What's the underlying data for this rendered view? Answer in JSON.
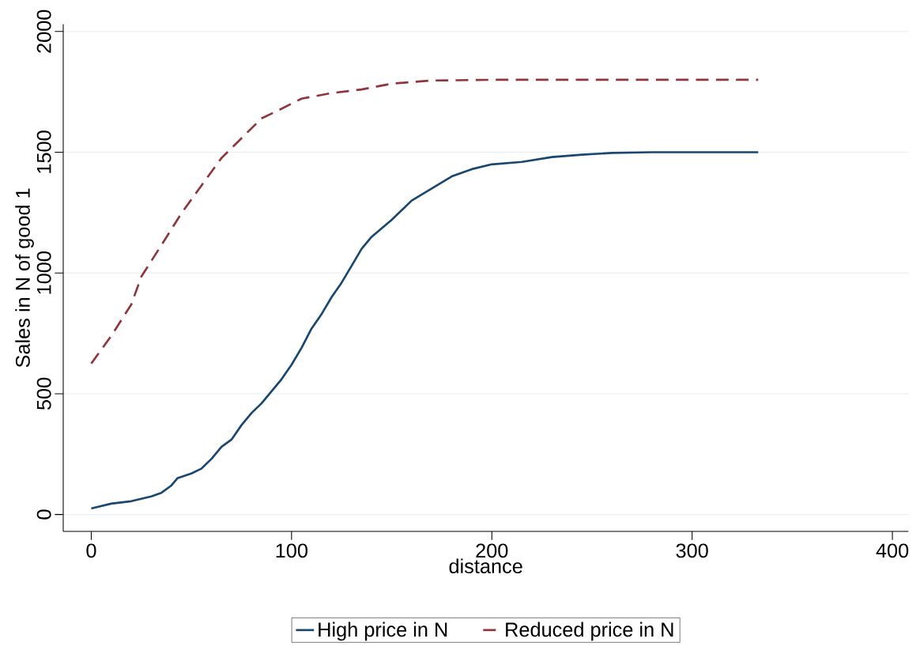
{
  "chart_data": {
    "type": "line",
    "xlabel": "distance",
    "ylabel": "Sales in N of good 1",
    "x": [
      0,
      10,
      20,
      30,
      35,
      40,
      43,
      50,
      55,
      60,
      65,
      70,
      75,
      80,
      85,
      90,
      95,
      100,
      105,
      110,
      115,
      120,
      125,
      130,
      135,
      140,
      150,
      160,
      170,
      180,
      190,
      200,
      215,
      230,
      245,
      260,
      280,
      333
    ],
    "series": [
      {
        "name": "High price in N",
        "color": "#1a476f",
        "line_style": "solid",
        "values": [
          25,
          45,
          55,
          75,
          90,
          120,
          150,
          170,
          190,
          230,
          280,
          310,
          370,
          420,
          460,
          510,
          560,
          620,
          690,
          770,
          830,
          900,
          960,
          1030,
          1100,
          1150,
          1220,
          1300,
          1350,
          1400,
          1430,
          1450,
          1460,
          1480,
          1490,
          1497,
          1500,
          1500
        ]
      },
      {
        "name": "Reduced price in N",
        "color": "#90353b",
        "line_style": "dashed",
        "x": [
          0,
          10,
          20,
          25,
          35,
          45,
          55,
          65,
          75,
          85,
          95,
          105,
          120,
          135,
          150,
          170,
          200,
          333
        ],
        "values": [
          625,
          740,
          870,
          985,
          1115,
          1247,
          1362,
          1476,
          1558,
          1640,
          1680,
          1722,
          1745,
          1760,
          1784,
          1797,
          1800,
          1800
        ]
      }
    ],
    "xlim": [
      -14,
      408
    ],
    "ylim": [
      -70,
      2030
    ],
    "xticks": [
      0,
      100,
      200,
      300,
      400
    ],
    "yticks": [
      0,
      500,
      1000,
      1500,
      2000
    ],
    "grid": "y",
    "legend": "bottom"
  }
}
